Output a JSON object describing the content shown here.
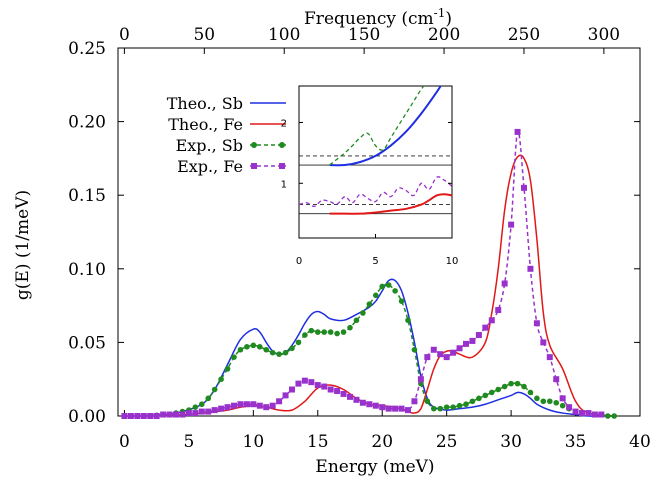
{
  "chart_data": {
    "type": "line",
    "xlabel": "Energy (meV)",
    "x2label": "Frequency (cm",
    "x2label_sup": "-1",
    "x2label_close": ")",
    "ylabel": "g(E) (1/meV)",
    "xlim": [
      -0.5,
      40
    ],
    "ylim": [
      0,
      0.25
    ],
    "x2lim": [
      -4,
      322.6
    ],
    "xticks": [
      "0",
      "5",
      "10",
      "15",
      "20",
      "25",
      "30",
      "35",
      "40"
    ],
    "yticks": [
      "0.00",
      "0.05",
      "0.10",
      "0.15",
      "0.20",
      "0.25"
    ],
    "x2ticks": [
      "0",
      "50",
      "100",
      "150",
      "200",
      "250",
      "300"
    ],
    "grid": false,
    "legend_position": "top-left",
    "series": [
      {
        "name": "Theo., Sb",
        "color": "#1f2fe0",
        "style": "solid",
        "x": [
          0,
          2,
          4,
          6,
          7,
          8,
          9,
          10,
          10.5,
          11,
          11.5,
          12,
          12.5,
          13,
          13.5,
          14,
          14.5,
          15,
          15.5,
          16,
          17,
          18,
          19,
          19.5,
          20,
          20.5,
          21,
          21.5,
          22,
          22.5,
          23,
          23.5,
          24,
          25,
          26,
          27,
          28,
          29,
          30,
          30.5,
          31,
          31.5,
          32,
          33,
          34,
          35,
          36,
          38
        ],
        "y": [
          0,
          0.0005,
          0.002,
          0.008,
          0.018,
          0.035,
          0.052,
          0.059,
          0.057,
          0.05,
          0.044,
          0.042,
          0.043,
          0.048,
          0.055,
          0.063,
          0.069,
          0.071,
          0.069,
          0.066,
          0.065,
          0.069,
          0.074,
          0.078,
          0.085,
          0.092,
          0.092,
          0.085,
          0.07,
          0.05,
          0.027,
          0.012,
          0.006,
          0.004,
          0.005,
          0.006,
          0.008,
          0.011,
          0.014,
          0.016,
          0.015,
          0.012,
          0.008,
          0.004,
          0.002,
          0.001,
          0,
          0
        ]
      },
      {
        "name": "Theo., Fe",
        "color": "#e01818",
        "style": "solid",
        "x": [
          0,
          2,
          4,
          6,
          8,
          9,
          10,
          11,
          12,
          13,
          14,
          15,
          16,
          17,
          18,
          19,
          20,
          21,
          22,
          22.5,
          23,
          23.5,
          24,
          24.5,
          25,
          25.5,
          26,
          27,
          28,
          28.5,
          29,
          29.5,
          30,
          30.5,
          31,
          31.5,
          32,
          32.5,
          33,
          34,
          35,
          36,
          38
        ],
        "y": [
          0,
          0,
          0.0005,
          0.002,
          0.004,
          0.006,
          0.007,
          0.006,
          0.004,
          0.004,
          0.01,
          0.019,
          0.021,
          0.018,
          0.012,
          0.008,
          0.007,
          0.006,
          0.003,
          0.002,
          0.005,
          0.018,
          0.032,
          0.041,
          0.044,
          0.044,
          0.042,
          0.04,
          0.05,
          0.07,
          0.1,
          0.14,
          0.165,
          0.176,
          0.175,
          0.16,
          0.12,
          0.07,
          0.048,
          0.032,
          0.01,
          0.002,
          0
        ]
      },
      {
        "name": "Exp., Sb",
        "color": "#1f8a1f",
        "style": "dashed",
        "marker": "circle",
        "x": [
          0,
          0.5,
          1,
          1.5,
          2,
          2.5,
          3,
          3.5,
          4,
          4.5,
          5,
          5.5,
          6,
          6.5,
          7,
          7.5,
          8,
          8.5,
          9,
          9.5,
          10,
          10.5,
          11,
          11.5,
          12,
          12.5,
          13,
          13.5,
          14,
          14.5,
          15,
          15.5,
          16,
          16.5,
          17,
          17.5,
          18,
          18.5,
          19,
          19.5,
          20,
          20.5,
          21,
          21.5,
          22,
          22.5,
          23,
          23.5,
          24,
          24.5,
          25,
          25.5,
          26,
          26.5,
          27,
          27.5,
          28,
          28.5,
          29,
          29.5,
          30,
          30.5,
          31,
          31.5,
          32,
          32.5,
          33,
          33.5,
          34,
          34.5,
          35,
          35.5,
          36,
          36.5,
          37,
          37.5,
          38
        ],
        "y": [
          0,
          0,
          0,
          0,
          0,
          0.0005,
          0.001,
          0.001,
          0.002,
          0.003,
          0.004,
          0.006,
          0.008,
          0.012,
          0.018,
          0.025,
          0.032,
          0.04,
          0.045,
          0.047,
          0.048,
          0.047,
          0.045,
          0.043,
          0.042,
          0.043,
          0.046,
          0.05,
          0.055,
          0.058,
          0.057,
          0.057,
          0.057,
          0.056,
          0.057,
          0.06,
          0.065,
          0.07,
          0.076,
          0.082,
          0.088,
          0.089,
          0.085,
          0.078,
          0.065,
          0.045,
          0.022,
          0.01,
          0.005,
          0.005,
          0.006,
          0.006,
          0.007,
          0.008,
          0.01,
          0.012,
          0.014,
          0.016,
          0.018,
          0.02,
          0.022,
          0.022,
          0.02,
          0.016,
          0.012,
          0.01,
          0.01,
          0.009,
          0.007,
          0.005,
          0.003,
          0.002,
          0.002,
          0.001,
          0.001,
          0,
          0
        ]
      },
      {
        "name": "Exp., Fe",
        "color": "#9932cc",
        "style": "dashed",
        "marker": "square",
        "x": [
          0,
          0.5,
          1,
          1.5,
          2,
          2.5,
          3,
          3.5,
          4,
          4.5,
          5,
          5.5,
          6,
          6.5,
          7,
          7.5,
          8,
          8.5,
          9,
          9.5,
          10,
          10.5,
          11,
          11.5,
          12,
          12.5,
          13,
          13.5,
          14,
          14.5,
          15,
          15.5,
          16,
          16.5,
          17,
          17.5,
          18,
          18.5,
          19,
          19.5,
          20,
          20.5,
          21,
          21.5,
          22,
          22.5,
          23,
          23.5,
          24,
          24.5,
          25,
          25.5,
          26,
          26.5,
          27,
          27.5,
          28,
          28.5,
          29,
          29.5,
          30,
          30.5,
          31,
          31.5,
          32,
          32.5,
          33,
          33.5,
          34,
          34.5,
          35,
          35.5,
          36,
          36.5,
          37
        ],
        "y": [
          0,
          0,
          0,
          0,
          0,
          0,
          0.001,
          0.001,
          0.001,
          0.001,
          0.002,
          0.002,
          0.003,
          0.003,
          0.004,
          0.005,
          0.006,
          0.007,
          0.008,
          0.008,
          0.008,
          0.007,
          0.006,
          0.007,
          0.01,
          0.014,
          0.018,
          0.022,
          0.024,
          0.023,
          0.021,
          0.02,
          0.018,
          0.017,
          0.015,
          0.013,
          0.011,
          0.009,
          0.008,
          0.007,
          0.006,
          0.005,
          0.005,
          0.005,
          0.004,
          0.01,
          0.025,
          0.04,
          0.045,
          0.042,
          0.04,
          0.043,
          0.046,
          0.049,
          0.051,
          0.055,
          0.06,
          0.065,
          0.072,
          0.09,
          0.13,
          0.193,
          0.155,
          0.1,
          0.063,
          0.05,
          0.04,
          0.025,
          0.012,
          0.006,
          0.003,
          0.002,
          0.002,
          0.001,
          0.001
        ]
      }
    ],
    "inset": {
      "xlim": [
        0,
        10
      ],
      "ylim": [
        0.1,
        2.6
      ],
      "xticks": [
        "0",
        "5",
        "10"
      ],
      "yticks": [
        "1",
        "2"
      ],
      "ref_lines": [
        {
          "y": 0.5,
          "style": "solid"
        },
        {
          "y": 0.65,
          "style": "dashed"
        },
        {
          "y": 1.3,
          "style": "solid"
        },
        {
          "y": 1.45,
          "style": "dashed"
        }
      ],
      "series": [
        {
          "name": "Theo., Sb",
          "color": "#1f2fe0",
          "style": "solid",
          "x": [
            2,
            3,
            4,
            5,
            6,
            7,
            8,
            9,
            9.5
          ],
          "y": [
            1.3,
            1.3,
            1.35,
            1.45,
            1.62,
            1.85,
            2.15,
            2.5,
            2.7
          ]
        },
        {
          "name": "Theo., Fe",
          "color": "#e01818",
          "style": "solid",
          "x": [
            2,
            3,
            4,
            5,
            6,
            7,
            8,
            8.5,
            9,
            9.5,
            10
          ],
          "y": [
            0.5,
            0.5,
            0.5,
            0.52,
            0.55,
            0.58,
            0.65,
            0.72,
            0.8,
            0.82,
            0.8
          ]
        },
        {
          "name": "Exp., Sb",
          "color": "#1f8a1f",
          "style": "dashed",
          "x": [
            2,
            2.5,
            3,
            3.5,
            4,
            4.5,
            5,
            5.5,
            6,
            6.5,
            7,
            7.5,
            8,
            8.5
          ],
          "y": [
            1.3,
            1.4,
            1.5,
            1.62,
            1.75,
            1.82,
            1.62,
            1.55,
            1.75,
            1.95,
            2.15,
            2.35,
            2.55,
            2.7
          ]
        },
        {
          "name": "Exp., Fe",
          "color": "#9932cc",
          "style": "dashed",
          "x": [
            0,
            0.5,
            1,
            1.5,
            2,
            2.5,
            3,
            3.5,
            4,
            4.5,
            5,
            5.5,
            6,
            6.5,
            7,
            7.5,
            8,
            8.5,
            9,
            9.5,
            10
          ],
          "y": [
            0.65,
            0.68,
            0.62,
            0.72,
            0.7,
            0.66,
            0.78,
            0.68,
            0.82,
            0.75,
            0.7,
            0.85,
            0.78,
            0.92,
            0.88,
            0.8,
            1.0,
            0.9,
            1.1,
            1.05,
            0.95
          ]
        }
      ]
    }
  }
}
